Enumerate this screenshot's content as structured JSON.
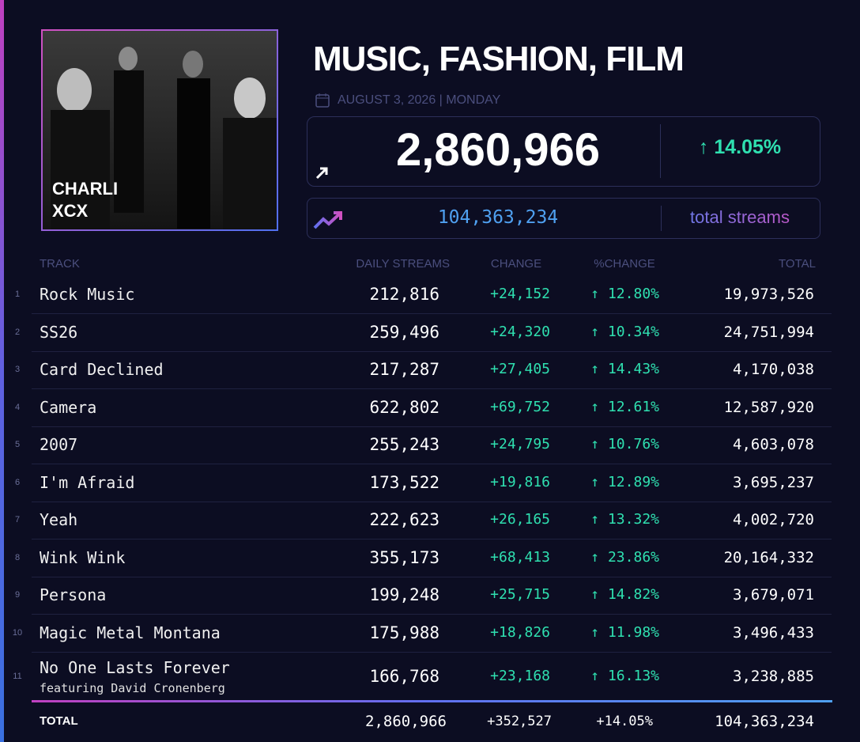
{
  "header": {
    "artwork_label": [
      "CHARLI",
      "XCX"
    ],
    "title": "MUSIC, FASHION, FILM",
    "date": "AUGUST 3, 2026 | MONDAY"
  },
  "summary": {
    "daily": "2,860,966",
    "change": "↑ 14.05%",
    "total": "104,363,234",
    "total_label": "total streams"
  },
  "table": {
    "columns": [
      "TRACK",
      "DAILY STREAMS",
      "CHANGE",
      "%CHANGE",
      "TOTAL"
    ],
    "rows": [
      {
        "rank": "1",
        "track": "Rock Music",
        "daily": "212,816",
        "change": "+24,152",
        "pct": "↑ 12.80%",
        "total": "19,973,526"
      },
      {
        "rank": "2",
        "track": "SS26",
        "daily": "259,496",
        "change": "+24,320",
        "pct": "↑ 10.34%",
        "total": "24,751,994"
      },
      {
        "rank": "3",
        "track": "Card Declined",
        "daily": "217,287",
        "change": "+27,405",
        "pct": "↑ 14.43%",
        "total": "4,170,038"
      },
      {
        "rank": "4",
        "track": "Camera",
        "daily": "622,802",
        "change": "+69,752",
        "pct": "↑ 12.61%",
        "total": "12,587,920"
      },
      {
        "rank": "5",
        "track": "2007",
        "daily": "255,243",
        "change": "+24,795",
        "pct": "↑ 10.76%",
        "total": "4,603,078"
      },
      {
        "rank": "6",
        "track": "I'm Afraid",
        "daily": "173,522",
        "change": "+19,816",
        "pct": "↑ 12.89%",
        "total": "3,695,237"
      },
      {
        "rank": "7",
        "track": "Yeah",
        "daily": "222,623",
        "change": "+26,165",
        "pct": "↑ 13.32%",
        "total": "4,002,720"
      },
      {
        "rank": "8",
        "track": "Wink Wink",
        "daily": "355,173",
        "change": "+68,413",
        "pct": "↑ 23.86%",
        "total": "20,164,332"
      },
      {
        "rank": "9",
        "track": "Persona",
        "daily": "199,248",
        "change": "+25,715",
        "pct": "↑ 14.82%",
        "total": "3,679,071"
      },
      {
        "rank": "10",
        "track": "Magic Metal Montana",
        "daily": "175,988",
        "change": "+18,826",
        "pct": "↑ 11.98%",
        "total": "3,496,433"
      },
      {
        "rank": "11",
        "track": "No One Lasts Forever",
        "featuring": "featuring David Cronenberg",
        "daily": "166,768",
        "change": "+23,168",
        "pct": "↑ 16.13%",
        "total": "3,238,885"
      }
    ],
    "footer": {
      "label": "TOTAL",
      "daily": "2,860,966",
      "change": "+352,527",
      "pct": "+14.05%",
      "total": "104,363,234"
    }
  }
}
